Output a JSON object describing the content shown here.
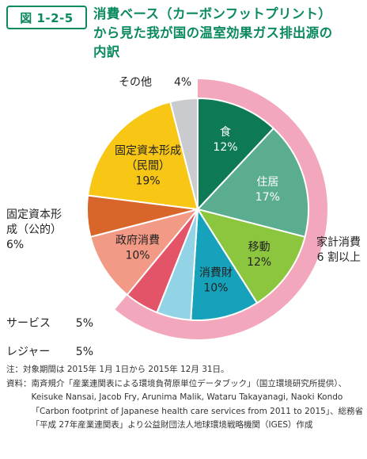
{
  "header": {
    "figure_number": "図 1-2-5",
    "title_lines": [
      "消費ベース（カーボンフットプリント）",
      "から見た我が国の温室効果ガス排出源の",
      "内訳"
    ]
  },
  "colors": {
    "accent": "#0b8a5f",
    "household_band": "#f2a7bc"
  },
  "chart_data": {
    "type": "pie",
    "title": "消費ベース（カーボンフットプリント）から見た我が国の温室効果ガス排出源の内訳",
    "unit": "%",
    "slices": [
      {
        "label_lines": [
          "食"
        ],
        "value": 12,
        "value_text": "12%",
        "color": "#0d7a55",
        "label_color": "#ffffff"
      },
      {
        "label_lines": [
          "住居"
        ],
        "value": 17,
        "value_text": "17%",
        "color": "#5aae8f",
        "label_color": "#ffffff"
      },
      {
        "label_lines": [
          "移動"
        ],
        "value": 12,
        "value_text": "12%",
        "color": "#8cc63e",
        "label_color": "#222222"
      },
      {
        "label_lines": [
          "消費財"
        ],
        "value": 10,
        "value_text": "10%",
        "color": "#17a2bc",
        "label_color": "#222222"
      },
      {
        "label_lines": [
          "レジャー"
        ],
        "value": 5,
        "value_text": "5%",
        "color": "#92d4e6",
        "label_color": "#222222"
      },
      {
        "label_lines": [
          "サービス"
        ],
        "value": 5,
        "value_text": "5%",
        "color": "#e45468",
        "label_color": "#222222"
      },
      {
        "label_lines": [
          "政府消費"
        ],
        "value": 10,
        "value_text": "10%",
        "color": "#f29a85",
        "label_color": "#222222"
      },
      {
        "label_lines": [
          "固定資本形",
          "成（公的）"
        ],
        "value": 6,
        "value_text": "6%",
        "color": "#d8652a",
        "label_color": "#222222"
      },
      {
        "label_lines": [
          "固定資本形成",
          "（民間）"
        ],
        "value": 19,
        "value_text": "19%",
        "color": "#f8c614",
        "label_color": "#222222"
      },
      {
        "label_lines": [
          "その他"
        ],
        "value": 4,
        "value_text": "4%",
        "color": "#c9cbcf",
        "label_color": "#222222"
      }
    ],
    "household_annotation": {
      "text_lines": [
        "家計消費",
        "6 割以上"
      ],
      "slices": [
        "食",
        "住居",
        "移動",
        "消費財",
        "レジャー",
        "サービス"
      ]
    }
  },
  "notes": [
    {
      "head": "注：",
      "text": "対象期間は 2015年 1月 1日から 2015年 12月 31日。"
    },
    {
      "head": "資料：",
      "text": "南斉規介「産業連関表による環境負荷原単位データブック」（国立環境研究所提供）、Keisuke Nansai, Jacob Fry, Arunima Malik, Wataru Takayanagi, Naoki Kondo「Carbon footprint of Japanese health care services from 2011 to 2015」、総務省「平成 27年産業連関表」より公益財団法人地球環境戦略機関（IGES）作成"
    }
  ]
}
